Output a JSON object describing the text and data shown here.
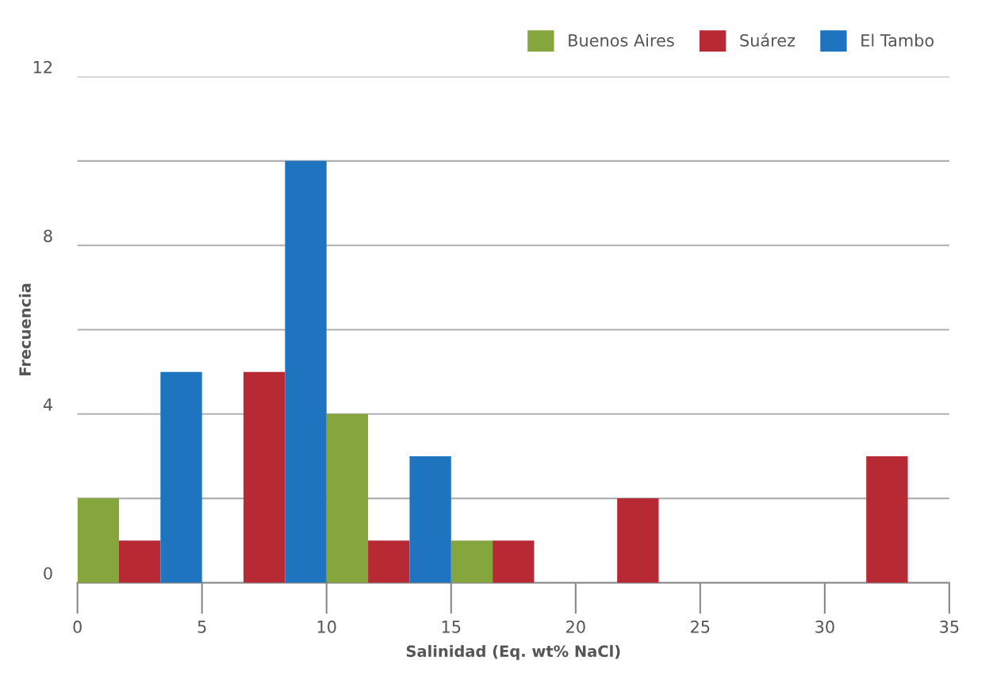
{
  "chart_data": {
    "type": "histogram",
    "xlabel": "Salinidad (Eq. wt% NaCl)",
    "ylabel": "Frecuencia",
    "bins": [
      0,
      5,
      10,
      15,
      20,
      25,
      30,
      35
    ],
    "series": [
      {
        "name": "Buenos Aires",
        "color": "#84a63c",
        "values": [
          2,
          0,
          4,
          1,
          0,
          0,
          0
        ]
      },
      {
        "name": "Suárez",
        "color": "#b72a33",
        "values": [
          1,
          5,
          1,
          1,
          2,
          0,
          3
        ]
      },
      {
        "name": "El Tambo",
        "color": "#1f74bf",
        "values": [
          5,
          10,
          3,
          0,
          0,
          0,
          0
        ]
      }
    ],
    "xlim": [
      0,
      35
    ],
    "xticks": [
      0,
      5,
      10,
      15,
      20,
      25,
      30,
      35
    ],
    "ylim": [
      0,
      12
    ],
    "yticks": [
      0,
      {
        "value": 2,
        "label": null
      },
      4,
      {
        "value": 6,
        "label": null
      },
      8,
      {
        "value": 10,
        "label": null
      },
      12
    ],
    "grid": "y",
    "legend": "top right"
  }
}
